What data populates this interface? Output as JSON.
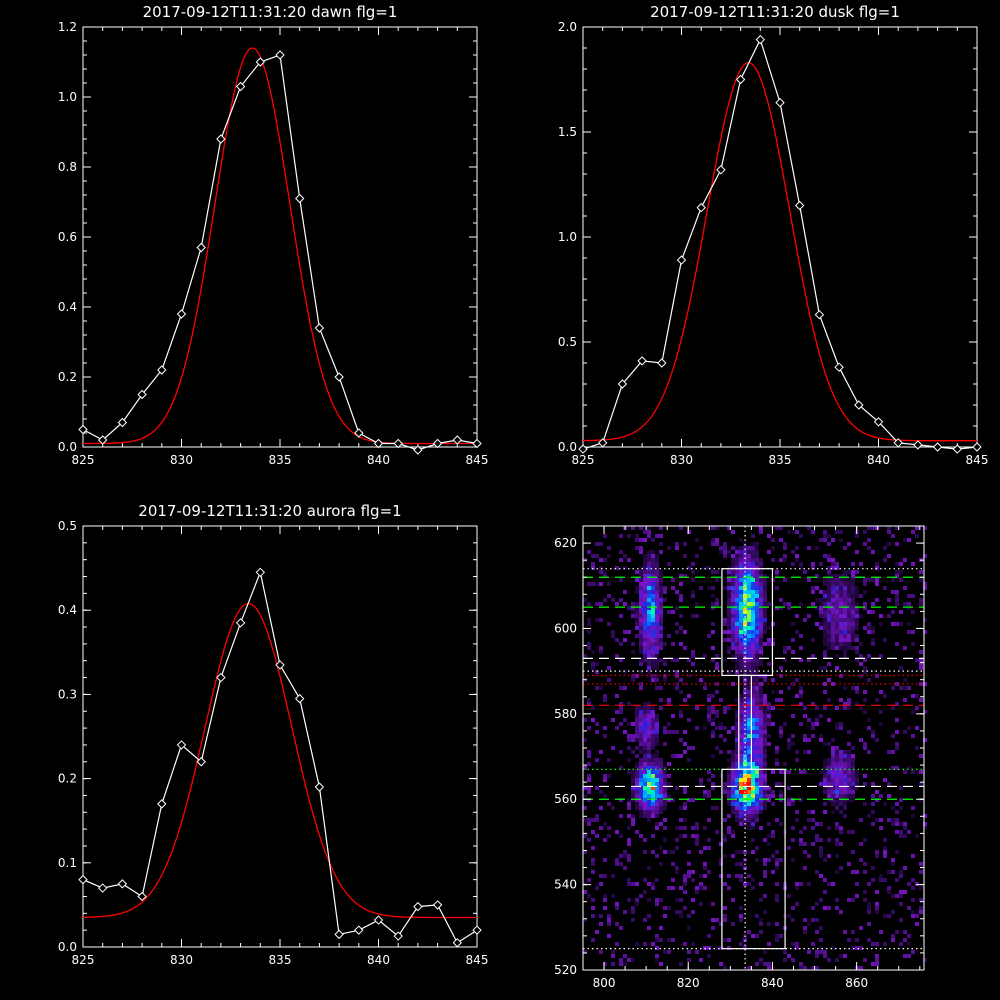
{
  "chart_data": [
    {
      "type": "line",
      "title": "2017-09-12T11:31:20 dawn flg=1",
      "xlim": [
        825,
        845
      ],
      "ylim": [
        0,
        1.2
      ],
      "xticks": [
        "825",
        "830",
        "835",
        "840",
        "845"
      ],
      "yticks": [
        "0.0",
        "0.2",
        "0.4",
        "0.6",
        "0.8",
        "1.0",
        "1.2"
      ],
      "xtick_values": [
        825,
        830,
        835,
        840,
        845
      ],
      "ytick_values": [
        0,
        0.2,
        0.4,
        0.6,
        0.8,
        1.0,
        1.2
      ],
      "series": [
        {
          "kind": "measured",
          "color": "#ffffff",
          "marker": "diamond",
          "x": [
            825,
            826,
            827,
            828,
            829,
            830,
            831,
            832,
            833,
            834,
            835,
            836,
            837,
            838,
            839,
            840,
            841,
            842,
            843,
            844,
            845
          ],
          "y": [
            0.05,
            0.02,
            0.07,
            0.15,
            0.22,
            0.38,
            0.57,
            0.88,
            1.03,
            1.1,
            1.12,
            0.71,
            0.34,
            0.2,
            0.04,
            0.01,
            0.01,
            -0.01,
            0.01,
            0.02,
            0.01
          ]
        },
        {
          "kind": "gaussian-fit",
          "color": "#ff0000",
          "model": {
            "amplitude": 1.13,
            "center": 833.6,
            "sigma": 1.9,
            "offset": 0.01
          }
        }
      ]
    },
    {
      "type": "line",
      "title": "2017-09-12T11:31:20 dusk flg=1",
      "xlim": [
        825,
        845
      ],
      "ylim": [
        0,
        2.0
      ],
      "xticks": [
        "825",
        "830",
        "835",
        "840",
        "845"
      ],
      "yticks": [
        "0.0",
        "0.5",
        "1.0",
        "1.5",
        "2.0"
      ],
      "xtick_values": [
        825,
        830,
        835,
        840,
        845
      ],
      "ytick_values": [
        0,
        0.5,
        1.0,
        1.5,
        2.0
      ],
      "series": [
        {
          "kind": "measured",
          "color": "#ffffff",
          "marker": "diamond",
          "x": [
            825,
            826,
            827,
            828,
            829,
            830,
            831,
            832,
            833,
            834,
            835,
            836,
            837,
            838,
            839,
            840,
            841,
            842,
            843,
            844,
            845
          ],
          "y": [
            -0.01,
            0.02,
            0.3,
            0.41,
            0.4,
            0.89,
            1.14,
            1.32,
            1.75,
            1.94,
            1.64,
            1.15,
            0.63,
            0.38,
            0.2,
            0.12,
            0.02,
            0.01,
            0.0,
            -0.01,
            0.0
          ]
        },
        {
          "kind": "gaussian-fit",
          "color": "#ff0000",
          "model": {
            "amplitude": 1.8,
            "center": 833.4,
            "sigma": 2.1,
            "offset": 0.03
          }
        }
      ]
    },
    {
      "type": "line",
      "title": "2017-09-12T11:31:20 aurora flg=1",
      "xlim": [
        825,
        845
      ],
      "ylim": [
        0,
        0.5
      ],
      "xticks": [
        "825",
        "830",
        "835",
        "840",
        "845"
      ],
      "yticks": [
        "0.0",
        "0.1",
        "0.2",
        "0.3",
        "0.4",
        "0.5"
      ],
      "xtick_values": [
        825,
        830,
        835,
        840,
        845
      ],
      "ytick_values": [
        0,
        0.1,
        0.2,
        0.3,
        0.4,
        0.5
      ],
      "series": [
        {
          "kind": "measured",
          "color": "#ffffff",
          "marker": "diamond",
          "x": [
            825,
            826,
            827,
            828,
            829,
            830,
            831,
            832,
            833,
            834,
            835,
            836,
            837,
            838,
            839,
            840,
            841,
            842,
            843,
            844,
            845
          ],
          "y": [
            0.08,
            0.07,
            0.075,
            0.06,
            0.17,
            0.24,
            0.22,
            0.32,
            0.385,
            0.445,
            0.335,
            0.295,
            0.19,
            0.015,
            0.02,
            0.032,
            0.013,
            0.048,
            0.05,
            0.005,
            0.02
          ]
        },
        {
          "kind": "gaussian-fit",
          "color": "#ff0000",
          "model": {
            "amplitude": 0.373,
            "center": 833.4,
            "sigma": 2.2,
            "offset": 0.035
          }
        }
      ]
    },
    {
      "type": "heatmap",
      "title": "",
      "xlim": [
        795,
        876
      ],
      "ylim": [
        520,
        624
      ],
      "xticks": [
        "800",
        "820",
        "840",
        "860"
      ],
      "yticks": [
        "520",
        "540",
        "560",
        "580",
        "600",
        "620"
      ],
      "xtick_values": [
        800,
        820,
        840,
        860
      ],
      "ytick_values": [
        520,
        540,
        560,
        580,
        600,
        620
      ],
      "colormap": [
        "#000000",
        "#3a0b6c",
        "#7a14c8",
        "#2a1fd8",
        "#0070ff",
        "#00c8ff",
        "#00ff90",
        "#ffee00",
        "#ff0000"
      ],
      "vertical_line": {
        "x": 833.5,
        "color": "#ffffff",
        "style": "dotted"
      },
      "boxes": [
        {
          "x0": 828,
          "x1": 840,
          "y0": 589,
          "y1": 614,
          "color": "#ffffff"
        },
        {
          "x0": 828,
          "x1": 843,
          "y0": 525,
          "y1": 567,
          "color": "#ffffff"
        },
        {
          "x0": 832,
          "x1": 835,
          "y0": 567,
          "y1": 589,
          "color": "#ffffff"
        }
      ],
      "hlines": [
        {
          "y": 614,
          "color": "#ffffff",
          "style": "dotted"
        },
        {
          "y": 612,
          "color": "#00ff00",
          "style": "dashed"
        },
        {
          "y": 605,
          "color": "#00ff00",
          "style": "dashed"
        },
        {
          "y": 593,
          "color": "#ffffff",
          "style": "dashed"
        },
        {
          "y": 590,
          "color": "#ffffff",
          "style": "dotted"
        },
        {
          "y": 589,
          "color": "#ff0000",
          "style": "dotted"
        },
        {
          "y": 587,
          "color": "#ff0000",
          "style": "dotted"
        },
        {
          "y": 582,
          "color": "#ff0000",
          "style": "dashed"
        },
        {
          "y": 567,
          "color": "#00ff00",
          "style": "dotted"
        },
        {
          "y": 563,
          "color": "#ffffff",
          "style": "dashed"
        },
        {
          "y": 560,
          "color": "#00ff00",
          "style": "dashed"
        },
        {
          "y": 525,
          "color": "#ffffff",
          "style": "dotted"
        }
      ],
      "blobs": [
        {
          "x": 811,
          "y": 604,
          "sx": 1.6,
          "sy": 7,
          "a": 0.55
        },
        {
          "x": 811,
          "y": 563,
          "sx": 2.0,
          "sy": 3.5,
          "a": 0.85
        },
        {
          "x": 810,
          "y": 577,
          "sx": 1.8,
          "sy": 3,
          "a": 0.35
        },
        {
          "x": 834,
          "y": 605,
          "sx": 2.2,
          "sy": 7,
          "a": 0.85
        },
        {
          "x": 834,
          "y": 563,
          "sx": 2.2,
          "sy": 4,
          "a": 1.0
        },
        {
          "x": 835,
          "y": 576,
          "sx": 2.0,
          "sy": 6,
          "a": 0.5
        },
        {
          "x": 856,
          "y": 604,
          "sx": 3,
          "sy": 6,
          "a": 0.25
        },
        {
          "x": 856,
          "y": 565,
          "sx": 2.5,
          "sy": 4,
          "a": 0.3
        }
      ]
    }
  ]
}
